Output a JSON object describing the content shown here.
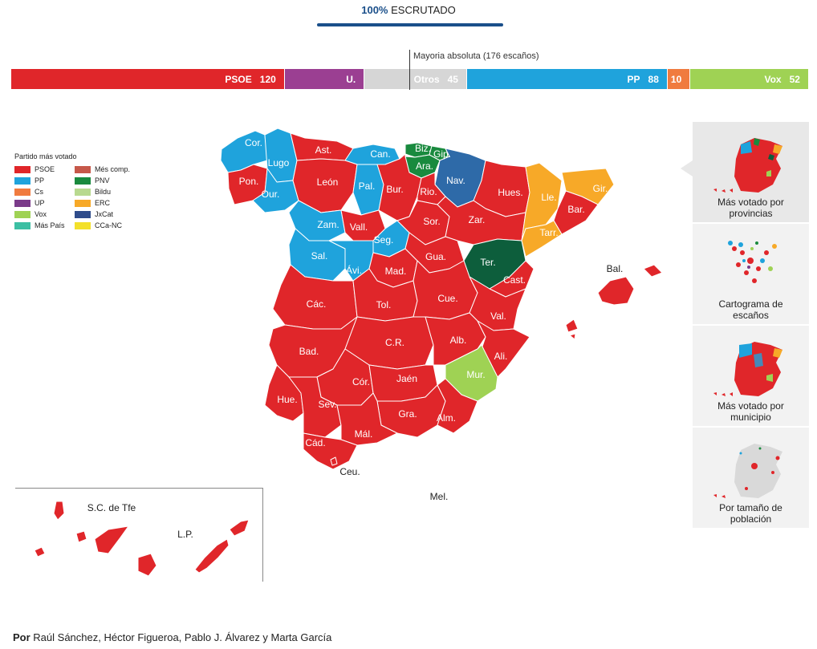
{
  "header": {
    "percent": "100%",
    "label": "ESCRUTADO"
  },
  "majority": {
    "label": "Mayoria absoluta (176 escaños)"
  },
  "seats": [
    {
      "party": "PSOE",
      "seats": 120,
      "color": "#e0262a"
    },
    {
      "party": "U.",
      "seats": 35,
      "color": "#9b3f92",
      "hide_count": true
    },
    {
      "party": "Otros",
      "seats": 45,
      "color": "#d6d6d6"
    },
    {
      "party": "PP",
      "seats": 88,
      "color": "#1fa3dc"
    },
    {
      "party": "",
      "seats": 10,
      "color": "#f07b3f"
    },
    {
      "party": "Vox",
      "seats": 52,
      "color": "#9fd254"
    }
  ],
  "legend": {
    "title": "Partido más votado",
    "items": [
      {
        "label": "PSOE",
        "color": "#e0262a"
      },
      {
        "label": "Més comp.",
        "color": "#c6584a"
      },
      {
        "label": "PP",
        "color": "#1fa3dc"
      },
      {
        "label": "PNV",
        "color": "#198a3e"
      },
      {
        "label": "Cs",
        "color": "#f07b3f"
      },
      {
        "label": "Bildu",
        "color": "#b8d98f"
      },
      {
        "label": "UP",
        "color": "#7b3b8a"
      },
      {
        "label": "ERC",
        "color": "#f7a928"
      },
      {
        "label": "Vox",
        "color": "#9fd254"
      },
      {
        "label": "JxCat",
        "color": "#2f4c8b"
      },
      {
        "label": "Más País",
        "color": "#3cbfa3"
      },
      {
        "label": "CCa-NC",
        "color": "#f3e02a"
      }
    ]
  },
  "provinces": {
    "cor": "Cor.",
    "lugo": "Lugo",
    "pon": "Pon.",
    "our": "Our.",
    "ast": "Ast.",
    "can": "Can.",
    "biz": "Biz.",
    "gip": "Gip.",
    "ara": "Ara.",
    "nav": "Nav.",
    "leon": "León",
    "pal": "Pal.",
    "bur": "Bur.",
    "rio": "Rio.",
    "hues": "Hues.",
    "lle": "Lle.",
    "gir": "Gir.",
    "bar": "Bar.",
    "tarr": "Tarr.",
    "zam": "Zam.",
    "vall": "Vall.",
    "seg": "Seg.",
    "sor": "Sor.",
    "zar": "Zar.",
    "sal": "Sal.",
    "avi": "Ávi.",
    "mad": "Mad.",
    "gua": "Gua.",
    "ter": "Ter.",
    "cast": "Cast.",
    "bal": "Bal.",
    "cac": "Các.",
    "tol": "Tol.",
    "cue": "Cue.",
    "val": "Val.",
    "bad": "Bad.",
    "cr": "C.R.",
    "alb": "Alb.",
    "ali": "Ali.",
    "mur": "Mur.",
    "hue": "Hue.",
    "cor2": "Cór.",
    "jaen": "Jaén",
    "sev": "Sev.",
    "gra": "Gra.",
    "alm": "Alm.",
    "mal": "Mál.",
    "cad": "Cád.",
    "ceu": "Ceu.",
    "mel": "Mel.",
    "sctfe": "S.C. de Tfe",
    "lp": "L.P."
  },
  "sidebar": [
    {
      "label": "Más votado por provincias"
    },
    {
      "label": "Cartograma de escaños"
    },
    {
      "label": "Más votado por municipio"
    },
    {
      "label": "Por tamaño de población"
    }
  ],
  "byline": {
    "prefix": "Por",
    "authors": "Raúl Sánchez, Héctor Figueroa, Pablo J. Álvarez y Marta García"
  }
}
